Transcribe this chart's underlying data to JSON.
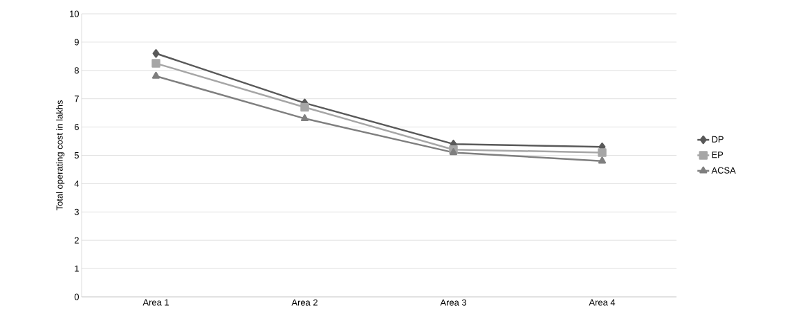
{
  "chart_data": {
    "type": "line",
    "ylabel": "Total operating cost in lakhs",
    "categories": [
      "Area 1",
      "Area 2",
      "Area 3",
      "Area 4"
    ],
    "series": [
      {
        "name": "DP",
        "color": "#595959",
        "marker": "diamond",
        "values": [
          8.6,
          6.85,
          5.4,
          5.3
        ]
      },
      {
        "name": "EP",
        "color": "#a6a6a6",
        "marker": "square",
        "values": [
          8.25,
          6.7,
          5.2,
          5.1
        ]
      },
      {
        "name": "ACSA",
        "color": "#7f7f7f",
        "marker": "triangle",
        "values": [
          7.8,
          6.3,
          5.1,
          4.8
        ]
      }
    ],
    "ylim": [
      0,
      10
    ],
    "yticks": [
      0,
      1,
      2,
      3,
      4,
      5,
      6,
      7,
      8,
      9,
      10
    ],
    "grid": "y",
    "legend": "right",
    "line_style": "solid"
  }
}
